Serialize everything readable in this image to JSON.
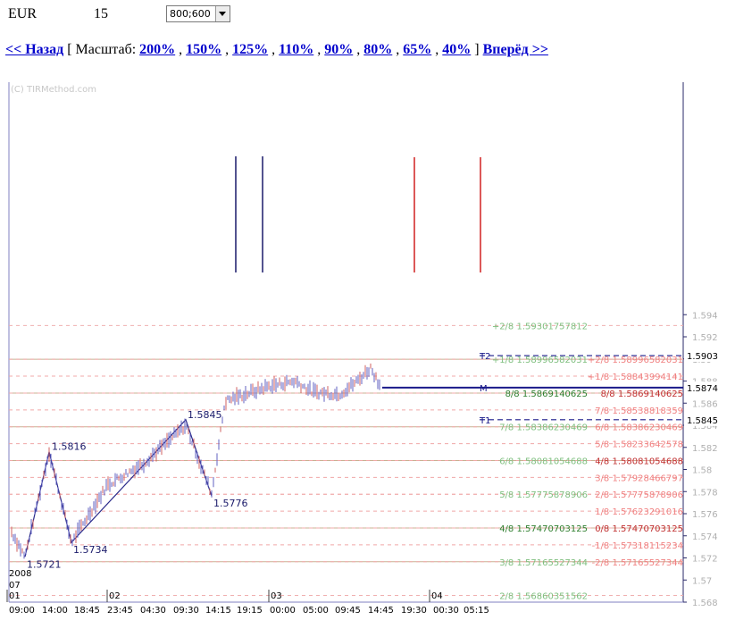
{
  "toolbar": {
    "symbol": "EUR",
    "timeframe": "15",
    "size_select": "800;600"
  },
  "nav": {
    "back": "<< Назад",
    "open_bracket": "[",
    "scale_label": "Масштаб:",
    "scales": [
      "200%",
      "150%",
      "125%",
      "110%",
      "90%",
      "80%",
      "65%",
      "40%"
    ],
    "close_bracket": "]",
    "forward": "Вперёд >>"
  },
  "chart_data": {
    "type": "candlestick",
    "watermark": "(C) TIRMethod.com",
    "ylim": [
      1.5675,
      1.5945
    ],
    "y_ticks": [
      "1.594",
      "1.592",
      "1.59",
      "1.588",
      "1.586",
      "1.584",
      "1.582",
      "1.58",
      "1.578",
      "1.576",
      "1.574",
      "1.572",
      "1.57",
      "1.568"
    ],
    "x_ticks": [
      "09:00",
      "14:00",
      "18:45",
      "23:45",
      "04:30",
      "09:30",
      "14:15",
      "19:15",
      "00:00",
      "05:00",
      "09:45",
      "14:45",
      "19:30",
      "00:30",
      "05:15"
    ],
    "date_labels": {
      "year": "2008",
      "month": "07",
      "days": [
        "01",
        "02",
        "03",
        "04"
      ]
    },
    "price_tags": [
      "1.5903",
      "1.5874",
      "1.5845"
    ],
    "target_markers": [
      "T2",
      "M",
      "T1"
    ],
    "targets": [
      {
        "label": "T2",
        "price": 1.5903
      },
      {
        "label": "M",
        "price": 1.5874
      },
      {
        "label": "T1",
        "price": 1.5845
      }
    ],
    "zigzag": [
      {
        "label": "1.5721",
        "price": 1.5721
      },
      {
        "label": "1.5816",
        "price": 1.5816
      },
      {
        "label": "1.5734",
        "price": 1.5734
      },
      {
        "label": "1.5845",
        "price": 1.5845
      },
      {
        "label": "1.5776",
        "price": 1.5776
      }
    ],
    "murrey_green": [
      {
        "label": "+2/8",
        "price": 1.59301757812
      },
      {
        "label": "+1/8",
        "price": 1.58996582031
      },
      {
        "label": "8/8",
        "price": 1.5869140625
      },
      {
        "label": "7/8",
        "price": 1.58386230469
      },
      {
        "label": "6/8",
        "price": 1.58081054688
      },
      {
        "label": "5/8",
        "price": 1.57775878906
      },
      {
        "label": "4/8",
        "price": 1.57470703125
      },
      {
        "label": "3/8",
        "price": 1.57165527344
      },
      {
        "label": "2/8",
        "price": 1.56860351562
      }
    ],
    "murrey_red": [
      {
        "label": "+2/8",
        "price": 1.58996582031
      },
      {
        "label": "+1/8",
        "price": 1.58843994141
      },
      {
        "label": "8/8",
        "price": 1.5869140625
      },
      {
        "label": "7/8",
        "price": 1.58538818359
      },
      {
        "label": "6/8",
        "price": 1.58386230469
      },
      {
        "label": "5/8",
        "price": 1.58233642578
      },
      {
        "label": "4/8",
        "price": 1.58081054688
      },
      {
        "label": "3/8",
        "price": 1.57928466797
      },
      {
        "label": "2/8",
        "price": 1.57775878906
      },
      {
        "label": "1/8",
        "price": 1.57623291016
      },
      {
        "label": "0/8",
        "price": 1.57470703125
      },
      {
        "label": "-1/8",
        "price": 1.57318115234
      },
      {
        "label": "-2/8",
        "price": 1.57165527344
      }
    ]
  }
}
